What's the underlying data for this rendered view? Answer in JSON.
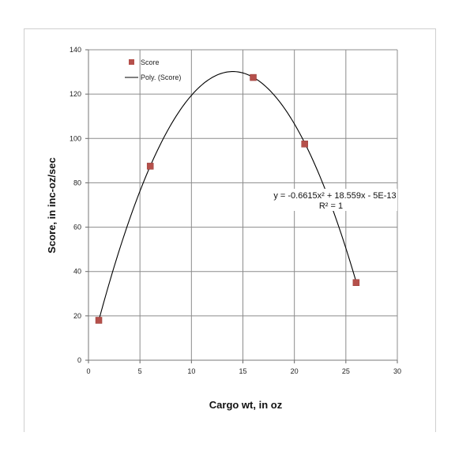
{
  "chart_data": {
    "type": "scatter",
    "xlabel": "Cargo wt, in oz",
    "ylabel": "Score, in inc-oz/sec",
    "xlim": [
      0,
      30
    ],
    "ylim": [
      0,
      140
    ],
    "xticks": [
      0,
      5,
      10,
      15,
      20,
      25,
      30
    ],
    "yticks": [
      0,
      20,
      40,
      60,
      80,
      100,
      120,
      140
    ],
    "grid": true,
    "legend_placement": "top-left",
    "series": [
      {
        "name": "Score",
        "type": "scatter",
        "color": "#b5504b",
        "points": [
          {
            "x": 1,
            "y": 18
          },
          {
            "x": 6,
            "y": 87.5
          },
          {
            "x": 16,
            "y": 127.5
          },
          {
            "x": 21,
            "y": 97.5
          },
          {
            "x": 26,
            "y": 35
          }
        ]
      },
      {
        "name": "Poly. (Score)",
        "type": "polynomial-trendline",
        "color": "#000000",
        "coefficients": {
          "a": -0.6615,
          "b": 18.559,
          "c": 0
        },
        "x_range": [
          1,
          26
        ]
      }
    ],
    "annotations": {
      "equation": "y = -0.6615x² + 18.559x - 5E-13",
      "r_squared": "R² = 1"
    }
  }
}
